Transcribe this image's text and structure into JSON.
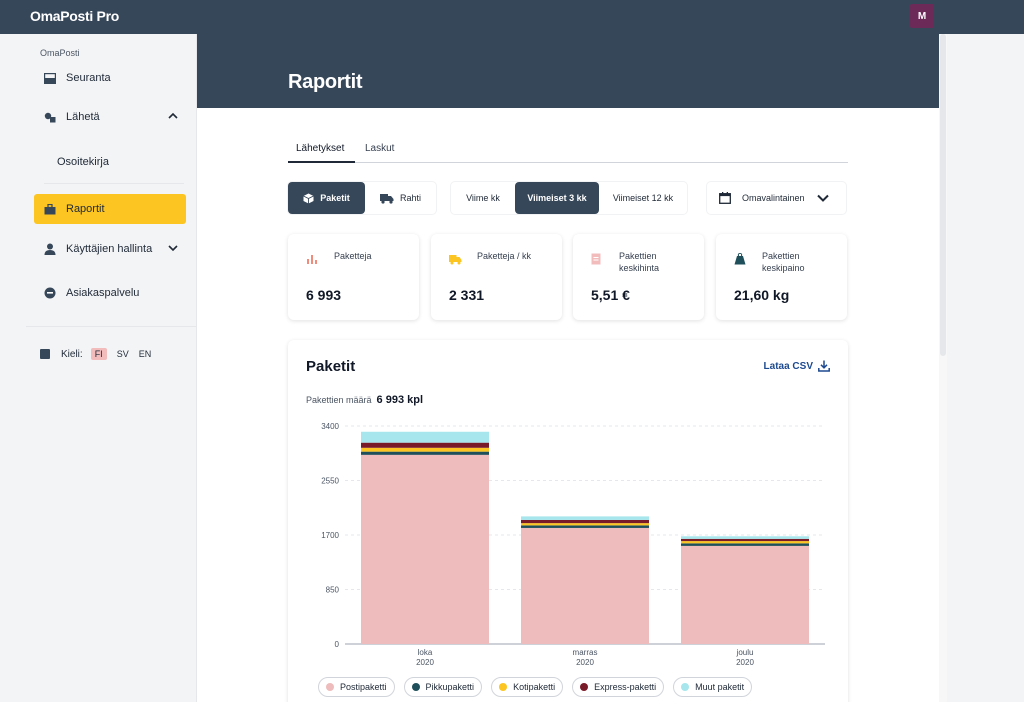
{
  "app": {
    "brand": "OmaPosti Pro",
    "avatar_initial": "M"
  },
  "sidebar": {
    "caption": "OmaPosti",
    "items": [
      {
        "label": "Seuranta",
        "icon": "inbox-icon"
      },
      {
        "label": "Lähetä",
        "icon": "send-package-icon"
      },
      {
        "label": "Raportit",
        "icon": "briefcase-icon"
      },
      {
        "label": "Käyttäjien hallinta",
        "icon": "user-icon"
      },
      {
        "label": "Asiakaspalvelu",
        "icon": "support-icon"
      }
    ],
    "sub_item": "Osoitekirja",
    "language": {
      "label": "Kieli:",
      "options": [
        "FI",
        "SV",
        "EN"
      ],
      "selected": "FI"
    }
  },
  "header": {
    "title": "Raportit"
  },
  "tabs": [
    {
      "label": "Lähetykset",
      "active": true
    },
    {
      "label": "Laskut",
      "active": false
    }
  ],
  "filters": {
    "type": [
      {
        "label": "Paketit",
        "active": true
      },
      {
        "label": "Rahti",
        "active": false
      }
    ],
    "period": [
      {
        "label": "Viime kk",
        "active": false
      },
      {
        "label": "Viimeiset 3 kk",
        "active": true
      },
      {
        "label": "Viimeiset 12 kk",
        "active": false
      }
    ],
    "custom": {
      "label": "Omavalintainen"
    }
  },
  "stats": [
    {
      "label": "Paketteja",
      "value": "6 993",
      "icon": "bar-chart-icon",
      "color": "#f28b7a"
    },
    {
      "label": "Paketteja / kk",
      "value": "2 331",
      "icon": "truck-icon",
      "color": "#fcc521"
    },
    {
      "label": "Pakettien keskihinta",
      "value": "5,51 €",
      "icon": "receipt-icon",
      "color": "#f2bcbc"
    },
    {
      "label": "Pakettien keskipaino",
      "value": "21,60 kg",
      "icon": "weight-icon",
      "color": "#1f4f5a"
    }
  ],
  "chart_panel": {
    "title": "Paketit",
    "csv_label": "Lataa CSV",
    "count_label": "Pakettien määrä",
    "count_value": "6 993 kpl"
  },
  "chart_data": {
    "type": "bar",
    "stacked": true,
    "categories": [
      "loka 2020",
      "marras 2020",
      "joulu 2020"
    ],
    "category_lines": [
      [
        "loka",
        "2020"
      ],
      [
        "marras",
        "2020"
      ],
      [
        "joulu",
        "2020"
      ]
    ],
    "series": [
      {
        "name": "Postipaketti",
        "color": "#eebcbc",
        "values": [
          2950,
          1810,
          1530
        ]
      },
      {
        "name": "Pikkupaketti",
        "color": "#1f4f5a",
        "values": [
          50,
          40,
          40
        ]
      },
      {
        "name": "Kotipaketti",
        "color": "#fcc521",
        "values": [
          60,
          35,
          35
        ]
      },
      {
        "name": "Express-paketti",
        "color": "#7a1b2a",
        "values": [
          80,
          50,
          35
        ]
      },
      {
        "name": "Muut paketit",
        "color": "#a6e6ec",
        "values": [
          170,
          55,
          40
        ]
      }
    ],
    "yticks": [
      0,
      850,
      1700,
      2550,
      3400
    ],
    "ylim": [
      0,
      3400
    ],
    "grid": true,
    "legend": "bottom"
  }
}
